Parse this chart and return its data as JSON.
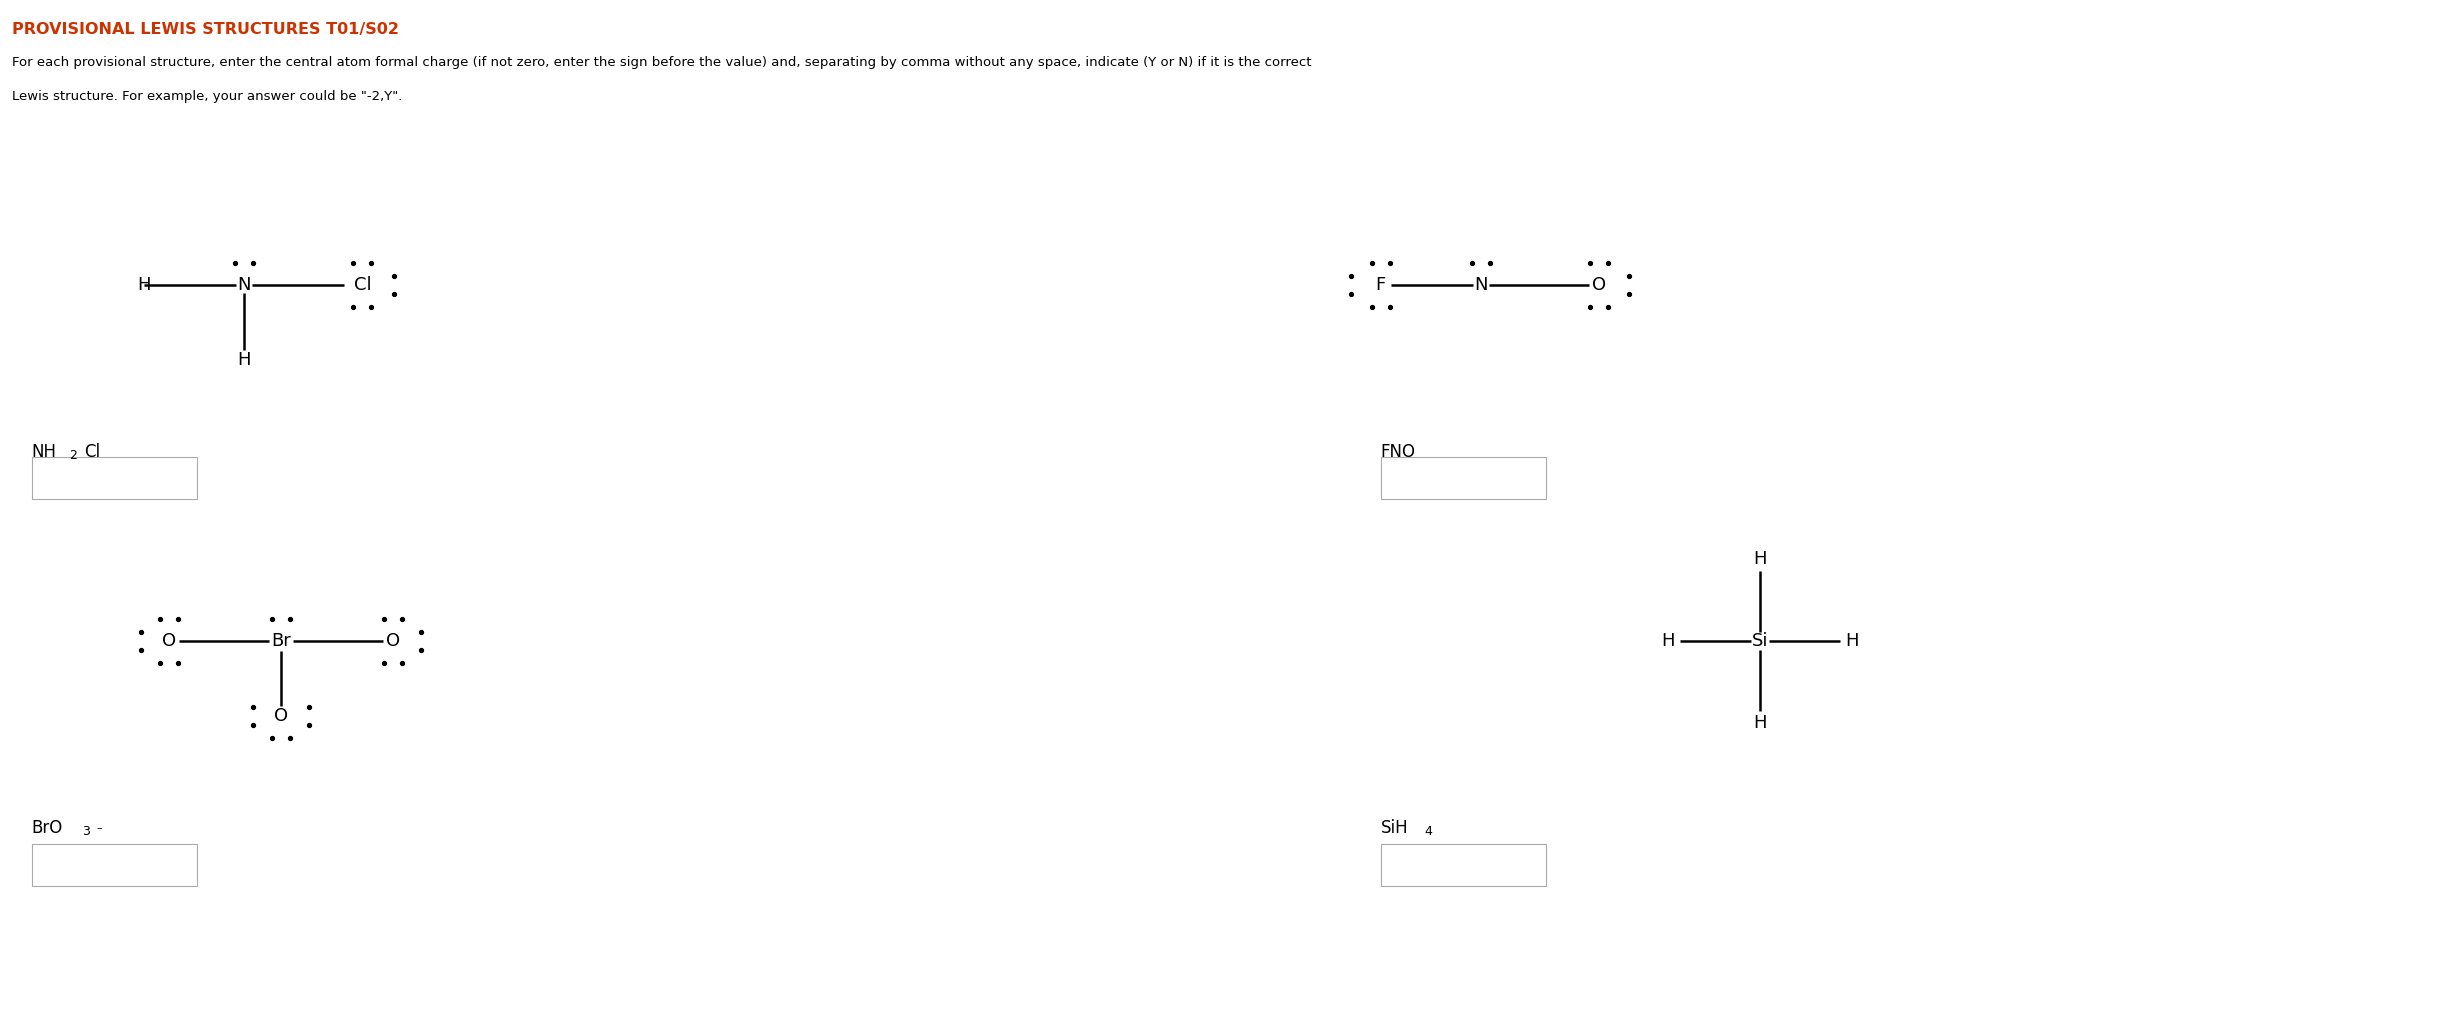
{
  "title": "PROVISIONAL LEWIS STRUCTURES T01/S02",
  "title_color": "#cc3300",
  "instruction_line1": "For each provisional structure, enter the central atom formal charge (if not zero, enter the sign before the value) and, separating by comma without any space, indicate (Y or N) if it is the correct",
  "instruction_line2": "Lewis structure. For example, your answer could be \"-2,Y\".",
  "bg_color": "#ffffff",
  "fig_width": 24.44,
  "fig_height": 10.18
}
